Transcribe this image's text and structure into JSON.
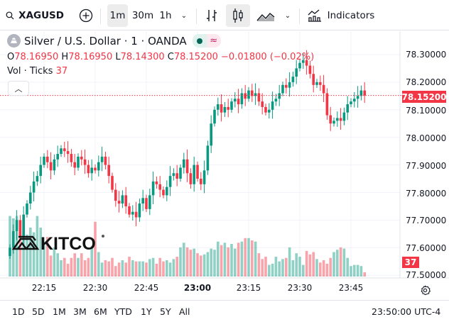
{
  "toolbar": {
    "symbol": "XAGUSD",
    "intervals": [
      "1m",
      "30m",
      "1h"
    ],
    "selected_interval": "1m",
    "indicators_label": "Indicators"
  },
  "legend": {
    "title": "Silver / U.S. Dollar · 1 · OANDA",
    "open_label": "O",
    "open": "78.16950",
    "high_label": "H",
    "high": "78.16950",
    "low_label": "L",
    "low": "78.14300",
    "close_label": "C",
    "close": "78.15200",
    "change": "−0.01800 (−0.02%)",
    "vol_label": "Vol · Ticks",
    "vol_value": "37"
  },
  "price_axis": {
    "ticks": [
      "78.30000",
      "78.20000",
      "78.10000",
      "78.00000",
      "77.90000",
      "77.80000",
      "77.70000",
      "77.60000"
    ],
    "last_price": "78.15200",
    "last_volume": "37",
    "partial_tick": "77.50000"
  },
  "time_axis": {
    "ticks": [
      "22:15",
      "22:30",
      "22:45",
      "23:00",
      "23:15",
      "23:30",
      "23:45"
    ]
  },
  "bottom_bar": {
    "ranges": [
      "1D",
      "5D",
      "1M",
      "3M",
      "6M",
      "YTD",
      "1Y",
      "5Y",
      "All"
    ],
    "clock": "23:50:00 UTC-4"
  },
  "watermark": "KITCO",
  "colors": {
    "up": "#089981",
    "down": "#f23645"
  },
  "chart_data": {
    "type": "candlestick",
    "interval": "1m",
    "start": "22:05",
    "ylim": [
      77.5,
      78.35
    ],
    "close": [
      77.6,
      77.66,
      77.7,
      77.64,
      77.72,
      77.76,
      77.8,
      77.84,
      77.86,
      77.9,
      77.93,
      77.91,
      77.88,
      77.92,
      77.94,
      77.96,
      77.95,
      77.94,
      77.91,
      77.89,
      77.93,
      77.92,
      77.9,
      77.87,
      77.89,
      77.88,
      77.91,
      77.93,
      77.9,
      77.86,
      77.81,
      77.77,
      77.76,
      77.79,
      77.75,
      77.72,
      77.73,
      77.71,
      77.76,
      77.78,
      77.74,
      77.79,
      77.84,
      77.83,
      77.81,
      77.79,
      77.82,
      77.86,
      77.87,
      77.85,
      77.89,
      77.92,
      77.87,
      77.83,
      77.9,
      77.85,
      77.83,
      77.88,
      77.97,
      78.05,
      78.1,
      78.12,
      78.09,
      78.11,
      78.1,
      78.13,
      78.14,
      78.12,
      78.16,
      78.14,
      78.17,
      78.15,
      78.16,
      78.13,
      78.11,
      78.09,
      78.1,
      78.13,
      78.14,
      78.16,
      78.19,
      78.18,
      78.2,
      78.22,
      78.25,
      78.27,
      78.28,
      78.26,
      78.23,
      78.19,
      78.2,
      78.19,
      78.16,
      78.08,
      78.05,
      78.06,
      78.07,
      78.06,
      78.09,
      78.12,
      78.13,
      78.14,
      78.15,
      78.17,
      78.152
    ],
    "volume": [
      520,
      500,
      520,
      380,
      480,
      360,
      420,
      380,
      520,
      420,
      300,
      340,
      180,
      250,
      200,
      140,
      160,
      110,
      160,
      200,
      160,
      200,
      140,
      160,
      260,
      470,
      210,
      120,
      140,
      130,
      160,
      90,
      120,
      140,
      120,
      170,
      140,
      130,
      130,
      130,
      120,
      150,
      160,
      110,
      160,
      130,
      140,
      120,
      150,
      170,
      250,
      290,
      250,
      230,
      240,
      200,
      180,
      190,
      210,
      240,
      230,
      300,
      270,
      290,
      250,
      280,
      240,
      290,
      300,
      330,
      330,
      310,
      300,
      200,
      150,
      170,
      100,
      110,
      170,
      130,
      150,
      160,
      250,
      140,
      200,
      170,
      100,
      220,
      190,
      210,
      150,
      120,
      140,
      110,
      160,
      210,
      230,
      250,
      240,
      160,
      90,
      100,
      100,
      90,
      37
    ]
  }
}
